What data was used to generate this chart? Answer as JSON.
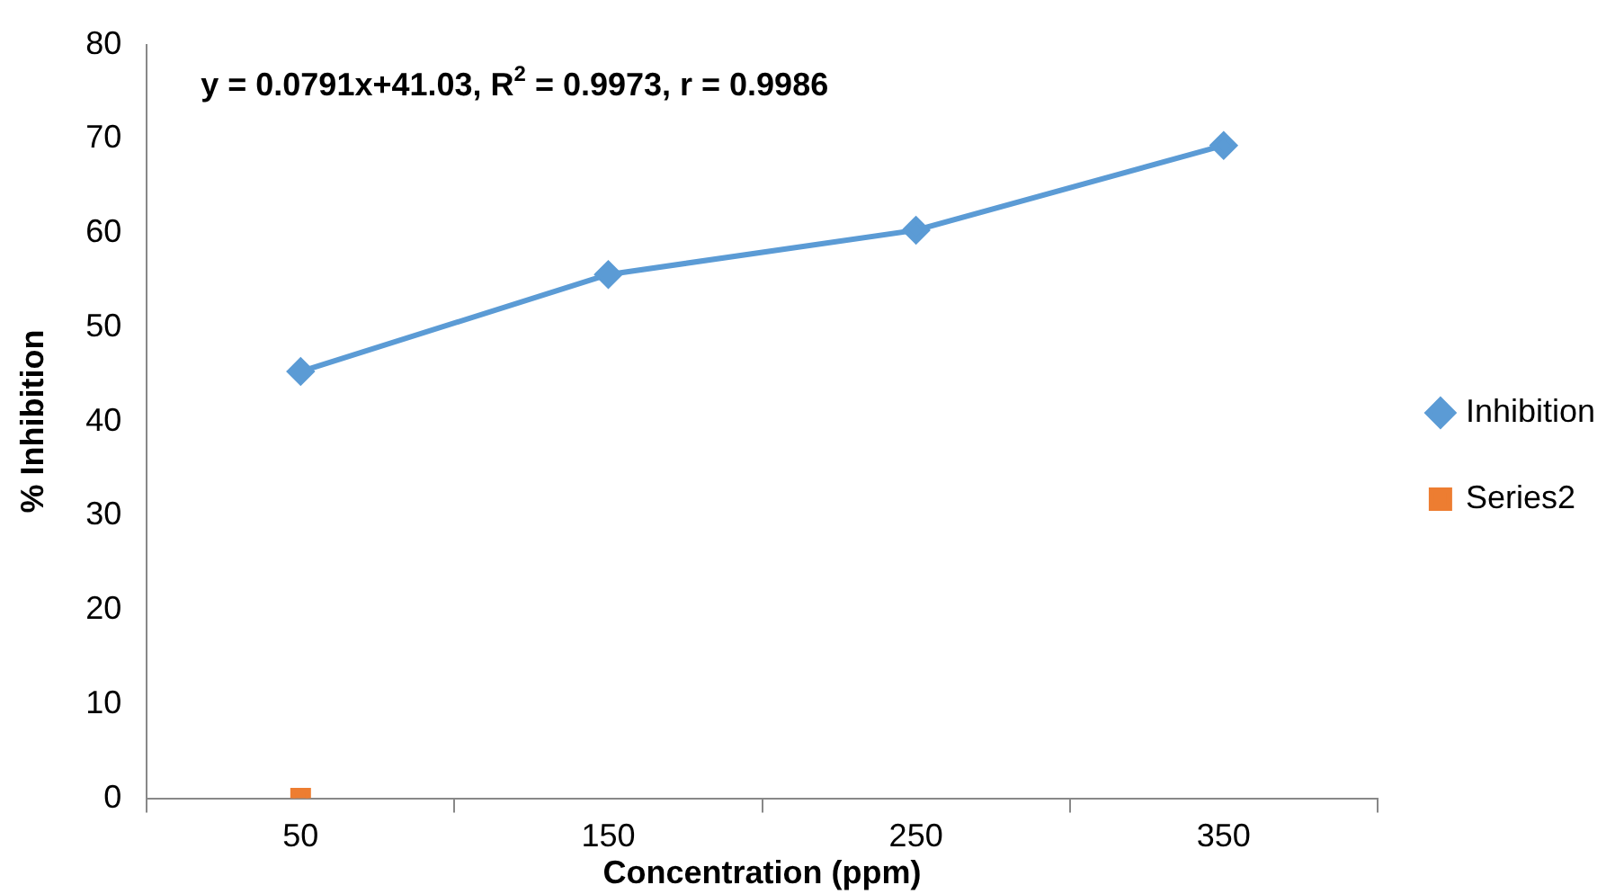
{
  "chart_data": {
    "type": "line",
    "xlabel": "Concentration (ppm)",
    "ylabel": "% Inhibition",
    "categories": [
      "50",
      "150",
      "250",
      "350"
    ],
    "series": [
      {
        "name": "Inhibition",
        "color": "#5b9bd5",
        "values": [
          45.3,
          55.6,
          60.3,
          69.3
        ],
        "marker": "diamond"
      },
      {
        "name": "Series2",
        "color": "#ed7d31",
        "values": [
          0,
          null,
          null,
          null
        ],
        "marker": "square"
      }
    ],
    "ylim": [
      0,
      80
    ],
    "yticks": [
      0,
      10,
      20,
      30,
      40,
      50,
      60,
      70,
      80
    ],
    "grid": false,
    "legend": "right",
    "annotations": [
      "y = 0.0791x+41.03, R$^{2}$ = 0.9973, r = 0.9986"
    ]
  }
}
